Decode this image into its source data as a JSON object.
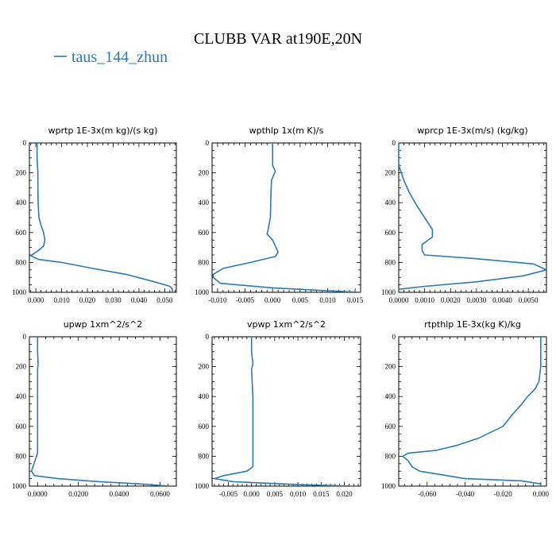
{
  "title": "CLUBB VAR at190E,20N",
  "legend": {
    "entries": [
      {
        "name": "taus_144_zhun",
        "color": "#2b7bb0"
      }
    ]
  },
  "series_color": "#2b7bb0",
  "chart_data": [
    {
      "type": "line",
      "title": "wprtp  1E-3x(m kg)/(s kg)",
      "xlim": [
        -0.0025,
        0.0545
      ],
      "ylim": [
        1000,
        0
      ],
      "xticks": [
        0,
        0.01,
        0.02,
        0.03,
        0.04,
        0.05
      ],
      "xtick_labels": [
        "0.000",
        "0.010",
        "0.020",
        "0.030",
        "0.040",
        "0.050"
      ],
      "yticks": [
        0,
        200,
        400,
        600,
        800,
        1000
      ],
      "ytick_labels": [
        "0",
        "200",
        "400",
        "600",
        "800",
        "1000"
      ],
      "series": [
        {
          "x": [
            0.0005,
            0.0005,
            0.0008,
            0.0008,
            0.0009,
            0.0012,
            0.002,
            0.003,
            0.0035,
            0.003,
            0.001,
            -0.002,
            0.001,
            0.01,
            0.022,
            0.035,
            0.046,
            0.052,
            0.053,
            0.053
          ],
          "y": [
            0,
            100,
            200,
            300,
            400,
            500,
            550,
            600,
            650,
            690,
            720,
            755,
            780,
            800,
            840,
            880,
            930,
            960,
            980,
            1000
          ]
        }
      ]
    },
    {
      "type": "line",
      "title": "wpthlp  1x(m K)/s",
      "xlim": [
        -0.011,
        0.016
      ],
      "ylim": [
        1000,
        0
      ],
      "xticks": [
        -0.01,
        -0.005,
        0,
        0.005,
        0.01,
        0.015
      ],
      "xtick_labels": [
        "-0.010",
        "-0.005",
        "0.000",
        "0.005",
        "0.010",
        "0.015"
      ],
      "yticks": [
        0,
        200,
        400,
        600,
        800,
        1000
      ],
      "ytick_labels": [
        "0",
        "200",
        "400",
        "600",
        "800",
        "1000"
      ],
      "series": [
        {
          "x": [
            0.0,
            0.0,
            0.0,
            0.0005,
            -0.0002,
            -0.0003,
            -0.0004,
            -0.0008,
            -0.001,
            0.0,
            0.001,
            0.0005,
            -0.004,
            -0.009,
            -0.0108,
            -0.0108,
            -0.0095,
            0.0,
            0.01,
            0.016
          ],
          "y": [
            0,
            100,
            150,
            190,
            250,
            350,
            500,
            580,
            610,
            650,
            730,
            760,
            800,
            840,
            880,
            900,
            940,
            970,
            990,
            1000
          ]
        }
      ]
    },
    {
      "type": "line",
      "title": "wprcp  1E-3x(m/s) (kg/kg)",
      "xlim": [
        0,
        0.0057
      ],
      "ylim": [
        1000,
        0
      ],
      "xticks": [
        0,
        0.001,
        0.002,
        0.003,
        0.004,
        0.005
      ],
      "xtick_labels": [
        "0.0000",
        "0.0010",
        "0.0020",
        "0.0030",
        "0.0040",
        "0.0050"
      ],
      "yticks": [
        0,
        200,
        400,
        600,
        800,
        1000
      ],
      "ytick_labels": [
        "0",
        "200",
        "400",
        "600",
        "800",
        "1000"
      ],
      "series": [
        {
          "x": [
            0.0,
            0.0,
            0.0002,
            0.0004,
            0.0007,
            0.001,
            0.0013,
            0.0013,
            0.0009,
            0.0009,
            0.001,
            0.003,
            0.0052,
            0.0057,
            0.0048,
            0.003,
            0.001,
            0.0
          ],
          "y": [
            0,
            150,
            250,
            330,
            420,
            500,
            580,
            630,
            680,
            720,
            750,
            775,
            810,
            850,
            890,
            930,
            960,
            980
          ]
        }
      ]
    },
    {
      "type": "line",
      "title": "upwp  1xm^2/s^2",
      "xlim": [
        -0.004,
        0.068
      ],
      "ylim": [
        1000,
        0
      ],
      "xticks": [
        0,
        0.02,
        0.04,
        0.06
      ],
      "xtick_labels": [
        "0.0000",
        "0.0200",
        "0.0400",
        "0.0600"
      ],
      "yticks": [
        0,
        200,
        400,
        600,
        800,
        1000
      ],
      "ytick_labels": [
        "0",
        "200",
        "400",
        "600",
        "800",
        "1000"
      ],
      "series": [
        {
          "x": [
            0.0,
            0.0,
            0.0003,
            0.0,
            0.0,
            0.0,
            0.0,
            0.0,
            -0.001,
            -0.003,
            -0.0015,
            0.01,
            0.03,
            0.05,
            0.065
          ],
          "y": [
            0,
            100,
            180,
            220,
            400,
            600,
            700,
            780,
            820,
            900,
            930,
            950,
            970,
            985,
            1000
          ]
        }
      ]
    },
    {
      "type": "line",
      "title": "vpwp  1xm^2/s^2",
      "xlim": [
        -0.0085,
        0.0235
      ],
      "ylim": [
        1000,
        0
      ],
      "xticks": [
        -0.005,
        0,
        0.005,
        0.01,
        0.015,
        0.02
      ],
      "xtick_labels": [
        "-0.005",
        "0.000",
        "0.005",
        "0.010",
        "0.015",
        "0.020"
      ],
      "yticks": [
        0,
        200,
        400,
        600,
        800,
        1000
      ],
      "ytick_labels": [
        "0",
        "200",
        "400",
        "600",
        "800",
        "1000"
      ],
      "series": [
        {
          "x": [
            0.0,
            0.0,
            0.0003,
            0.0,
            0.0003,
            0.0003,
            0.0003,
            0.0003,
            0.0003,
            -0.001,
            -0.006,
            -0.008,
            -0.004,
            0.01,
            0.022
          ],
          "y": [
            0,
            100,
            180,
            220,
            400,
            600,
            700,
            800,
            870,
            900,
            930,
            950,
            970,
            990,
            1000
          ]
        }
      ]
    },
    {
      "type": "line",
      "title": "rtpthlp  1E-3x(kg K)/kg",
      "xlim": [
        -0.075,
        0.003
      ],
      "ylim": [
        1000,
        0
      ],
      "xticks": [
        -0.06,
        -0.04,
        -0.02,
        0
      ],
      "xtick_labels": [
        "-0.060",
        "-0.040",
        "-0.020",
        "0.000"
      ],
      "yticks": [
        0,
        200,
        400,
        600,
        800,
        1000
      ],
      "ytick_labels": [
        "0",
        "200",
        "400",
        "600",
        "800",
        "1000"
      ],
      "series": [
        {
          "x": [
            0.0,
            0.0,
            0.0,
            -0.001,
            -0.003,
            -0.007,
            -0.01,
            -0.015,
            -0.02,
            -0.033,
            -0.045,
            -0.055,
            -0.07,
            -0.073,
            -0.07,
            -0.068,
            -0.064,
            -0.04,
            -0.01,
            0.0,
            0.0
          ],
          "y": [
            0,
            100,
            200,
            300,
            350,
            400,
            450,
            520,
            600,
            680,
            730,
            760,
            780,
            800,
            830,
            870,
            900,
            950,
            965,
            985,
            1000
          ]
        }
      ]
    }
  ]
}
